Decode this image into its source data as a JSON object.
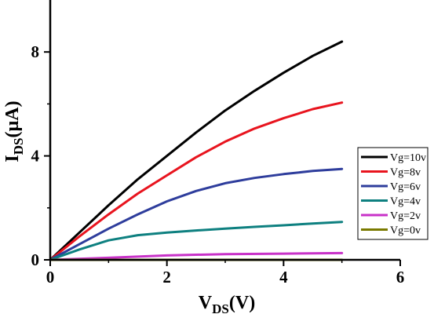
{
  "chart_data": {
    "type": "line",
    "xlabel": {
      "main": "V",
      "sub": "DS",
      "tail": "(V)"
    },
    "ylabel": {
      "main": "I",
      "sub": "DS",
      "tail": "(µA)"
    },
    "xlim": [
      0,
      6
    ],
    "ylim": [
      0,
      10
    ],
    "x_ticks": [
      0,
      2,
      4,
      6
    ],
    "y_ticks": [
      0,
      4,
      8
    ],
    "grid": false,
    "legend_position": "right",
    "series": [
      {
        "name": "Vg=10v",
        "color": "#000000",
        "points": [
          [
            0,
            0
          ],
          [
            0.5,
            1.05
          ],
          [
            1,
            2.1
          ],
          [
            1.5,
            3.1
          ],
          [
            2,
            4.0
          ],
          [
            2.5,
            4.9
          ],
          [
            3,
            5.75
          ],
          [
            3.5,
            6.5
          ],
          [
            4,
            7.2
          ],
          [
            4.5,
            7.85
          ],
          [
            5,
            8.4
          ]
        ]
      },
      {
        "name": "Vg=8v",
        "color": "#e8141e",
        "points": [
          [
            0,
            0
          ],
          [
            0.5,
            0.9
          ],
          [
            1,
            1.75
          ],
          [
            1.5,
            2.55
          ],
          [
            2,
            3.25
          ],
          [
            2.5,
            3.95
          ],
          [
            3,
            4.55
          ],
          [
            3.5,
            5.05
          ],
          [
            4,
            5.45
          ],
          [
            4.5,
            5.8
          ],
          [
            5,
            6.05
          ]
        ]
      },
      {
        "name": "Vg=6v",
        "color": "#2e3d9c",
        "points": [
          [
            0,
            0
          ],
          [
            0.5,
            0.6
          ],
          [
            1,
            1.2
          ],
          [
            1.5,
            1.75
          ],
          [
            2,
            2.25
          ],
          [
            2.5,
            2.65
          ],
          [
            3,
            2.95
          ],
          [
            3.5,
            3.15
          ],
          [
            4,
            3.3
          ],
          [
            4.5,
            3.42
          ],
          [
            5,
            3.5
          ]
        ]
      },
      {
        "name": "Vg=4v",
        "color": "#0e8080",
        "points": [
          [
            0,
            0
          ],
          [
            0.5,
            0.4
          ],
          [
            1,
            0.75
          ],
          [
            1.5,
            0.95
          ],
          [
            2,
            1.05
          ],
          [
            2.5,
            1.13
          ],
          [
            3,
            1.2
          ],
          [
            3.5,
            1.27
          ],
          [
            4,
            1.33
          ],
          [
            4.5,
            1.4
          ],
          [
            5,
            1.46
          ]
        ]
      },
      {
        "name": "Vg=2v",
        "color": "#c832c8",
        "points": [
          [
            0,
            0
          ],
          [
            1,
            0.08
          ],
          [
            2,
            0.17
          ],
          [
            3,
            0.22
          ],
          [
            4,
            0.24
          ],
          [
            5,
            0.26
          ]
        ]
      },
      {
        "name": "Vg=0v",
        "color": "#7a7a00",
        "points": [
          [
            0,
            0
          ],
          [
            1,
            0
          ],
          [
            2,
            0
          ],
          [
            3,
            0
          ],
          [
            4,
            0
          ],
          [
            5,
            0
          ]
        ]
      }
    ]
  }
}
